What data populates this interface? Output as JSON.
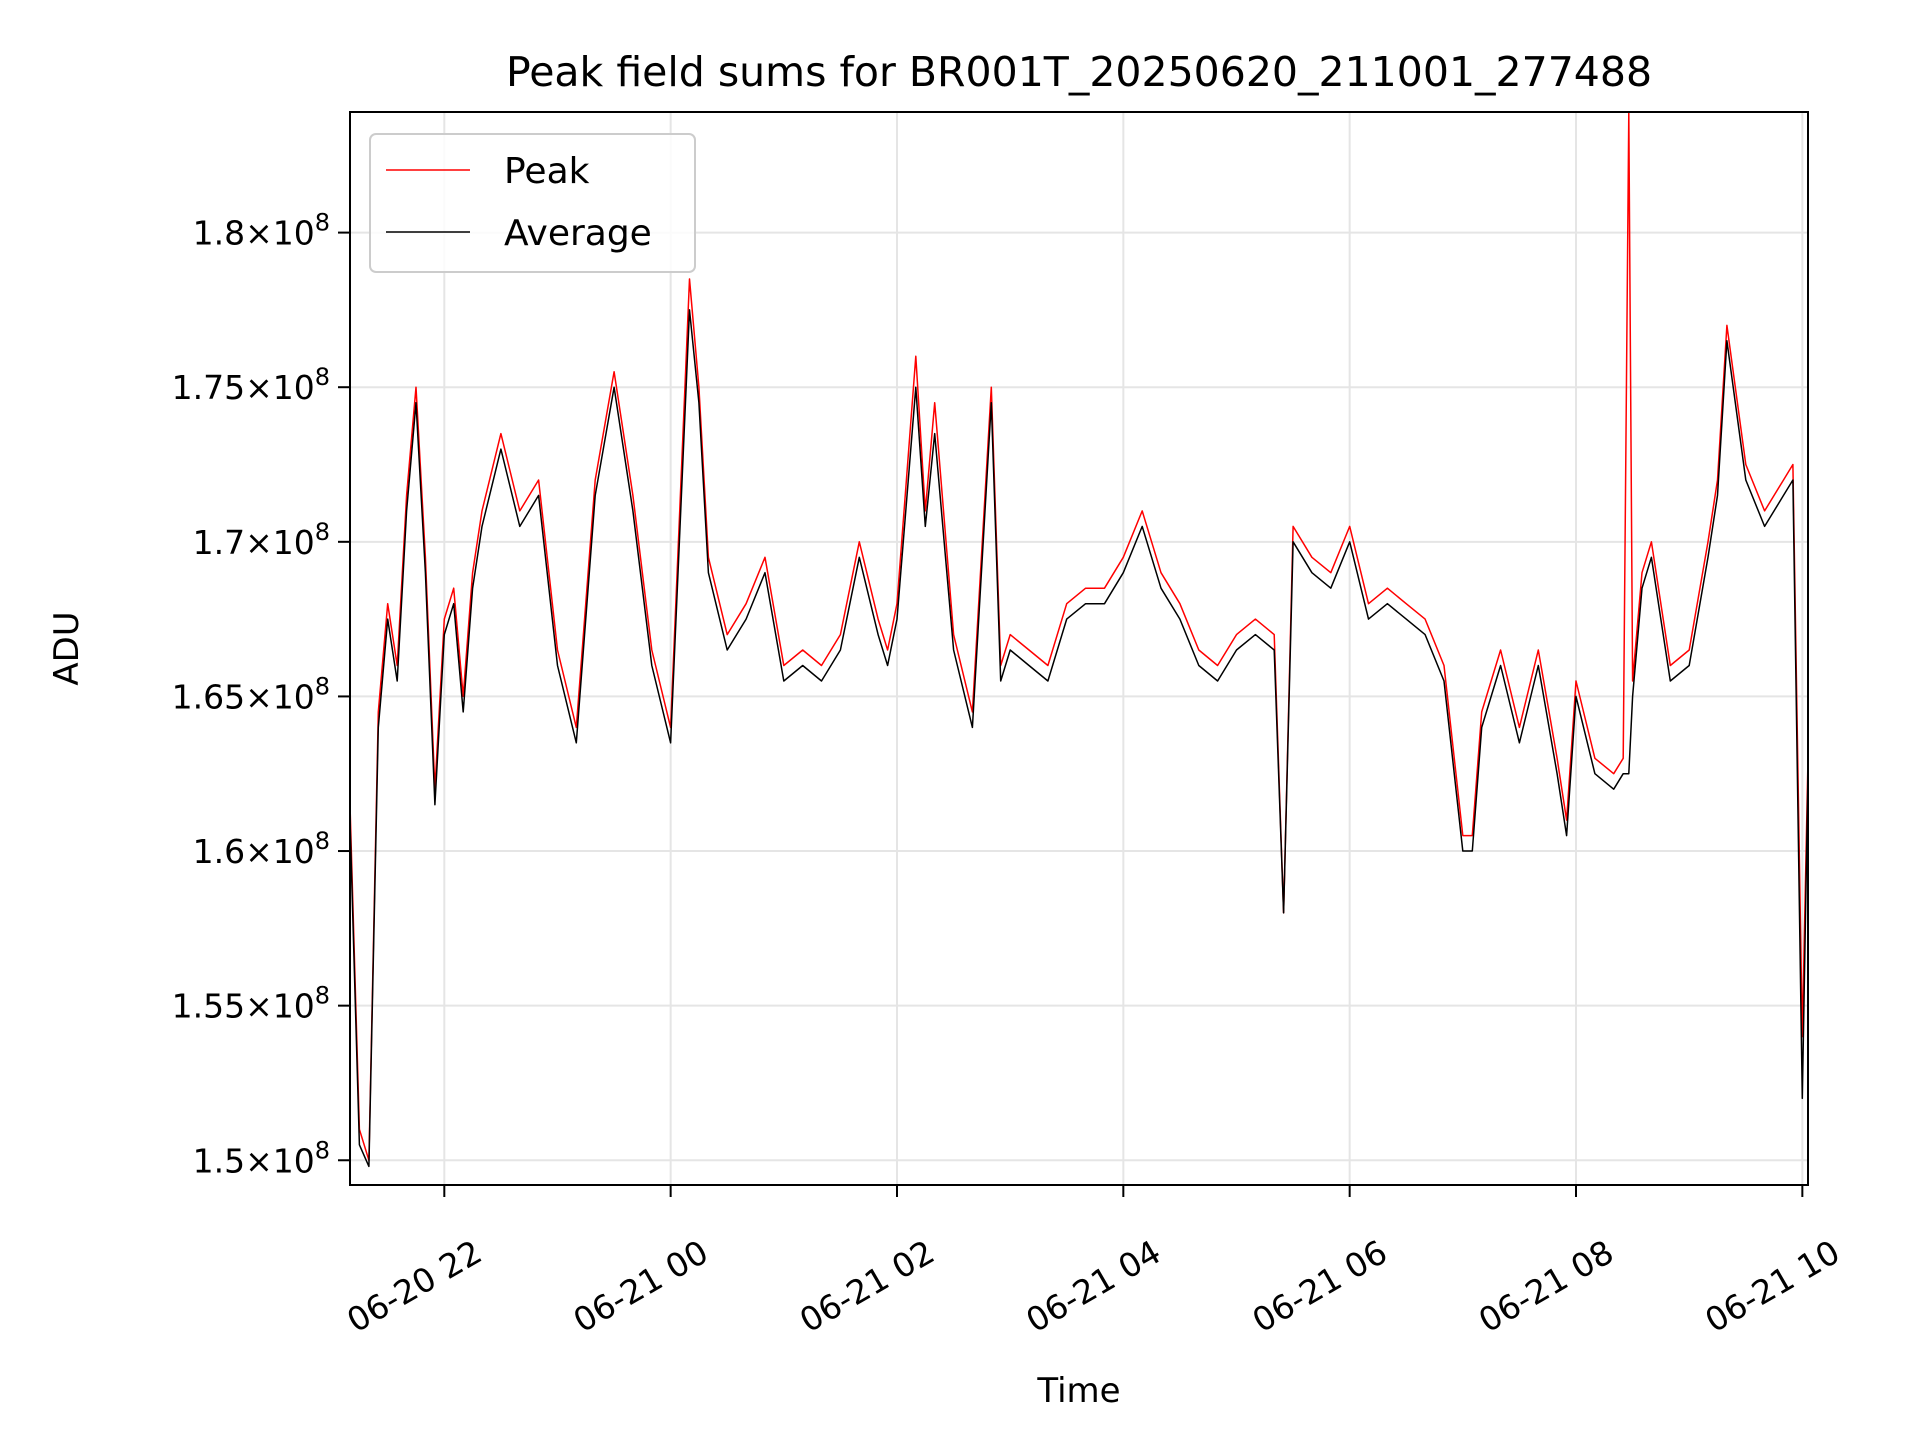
{
  "chart_data": {
    "type": "line",
    "title": "Peak field sums for BR001T_20250620_211001_277488",
    "xlabel": "Time",
    "ylabel": "ADU",
    "x_format": "MM-DD HH",
    "xlim": [
      "2025-06-20 21:10",
      "2025-06-21 10:03"
    ],
    "ylim": [
      149200000,
      183900000
    ],
    "grid": true,
    "legend_position": "top-left",
    "x_ticks": [
      "06-20 22",
      "06-21 00",
      "06-21 02",
      "06-21 04",
      "06-21 06",
      "06-21 08",
      "06-21 10"
    ],
    "x_tick_values": [
      "2025-06-20 22:00",
      "2025-06-21 00:00",
      "2025-06-21 02:00",
      "2025-06-21 04:00",
      "2025-06-21 06:00",
      "2025-06-21 08:00",
      "2025-06-21 10:00"
    ],
    "y_ticks": [
      {
        "value": 150000000,
        "mantissa": "1.5"
      },
      {
        "value": 155000000,
        "mantissa": "1.55"
      },
      {
        "value": 160000000,
        "mantissa": "1.6"
      },
      {
        "value": 165000000,
        "mantissa": "1.65"
      },
      {
        "value": 170000000,
        "mantissa": "1.7"
      },
      {
        "value": 175000000,
        "mantissa": "1.75"
      },
      {
        "value": 180000000,
        "mantissa": "1.8"
      }
    ],
    "y_tick_times": "×10",
    "y_tick_exponent": "8",
    "series": [
      {
        "name": "Peak",
        "color": "#ff0000",
        "x": [
          "2025-06-20 21:10",
          "2025-06-20 21:15",
          "2025-06-20 21:20",
          "2025-06-20 21:25",
          "2025-06-20 21:30",
          "2025-06-20 21:35",
          "2025-06-20 21:40",
          "2025-06-20 21:45",
          "2025-06-20 21:50",
          "2025-06-20 21:55",
          "2025-06-20 22:00",
          "2025-06-20 22:05",
          "2025-06-20 22:10",
          "2025-06-20 22:15",
          "2025-06-20 22:20",
          "2025-06-20 22:30",
          "2025-06-20 22:40",
          "2025-06-20 22:50",
          "2025-06-20 23:00",
          "2025-06-20 23:10",
          "2025-06-20 23:20",
          "2025-06-20 23:30",
          "2025-06-20 23:40",
          "2025-06-20 23:50",
          "2025-06-21 00:00",
          "2025-06-21 00:10",
          "2025-06-21 00:15",
          "2025-06-21 00:20",
          "2025-06-21 00:30",
          "2025-06-21 00:40",
          "2025-06-21 00:50",
          "2025-06-21 01:00",
          "2025-06-21 01:10",
          "2025-06-21 01:20",
          "2025-06-21 01:30",
          "2025-06-21 01:40",
          "2025-06-21 01:50",
          "2025-06-21 01:55",
          "2025-06-21 02:00",
          "2025-06-21 02:10",
          "2025-06-21 02:15",
          "2025-06-21 02:20",
          "2025-06-21 02:30",
          "2025-06-21 02:40",
          "2025-06-21 02:50",
          "2025-06-21 02:55",
          "2025-06-21 03:00",
          "2025-06-21 03:10",
          "2025-06-21 03:20",
          "2025-06-21 03:30",
          "2025-06-21 03:40",
          "2025-06-21 03:50",
          "2025-06-21 04:00",
          "2025-06-21 04:10",
          "2025-06-21 04:20",
          "2025-06-21 04:30",
          "2025-06-21 04:40",
          "2025-06-21 04:50",
          "2025-06-21 05:00",
          "2025-06-21 05:10",
          "2025-06-21 05:20",
          "2025-06-21 05:25",
          "2025-06-21 05:30",
          "2025-06-21 05:40",
          "2025-06-21 05:50",
          "2025-06-21 06:00",
          "2025-06-21 06:10",
          "2025-06-21 06:20",
          "2025-06-21 06:30",
          "2025-06-21 06:40",
          "2025-06-21 06:50",
          "2025-06-21 07:00",
          "2025-06-21 07:05",
          "2025-06-21 07:10",
          "2025-06-21 07:20",
          "2025-06-21 07:30",
          "2025-06-21 07:40",
          "2025-06-21 07:50",
          "2025-06-21 07:55",
          "2025-06-21 08:00",
          "2025-06-21 08:10",
          "2025-06-21 08:20",
          "2025-06-21 08:25",
          "2025-06-21 08:28",
          "2025-06-21 08:30",
          "2025-06-21 08:35",
          "2025-06-21 08:40",
          "2025-06-21 08:50",
          "2025-06-21 09:00",
          "2025-06-21 09:10",
          "2025-06-21 09:15",
          "2025-06-21 09:20",
          "2025-06-21 09:30",
          "2025-06-21 09:40",
          "2025-06-21 09:50",
          "2025-06-21 09:55",
          "2025-06-21 10:00",
          "2025-06-21 10:03"
        ],
        "values": [
          161500000,
          151000000,
          150000000,
          164500000,
          168000000,
          166000000,
          171500000,
          175000000,
          169500000,
          162000000,
          167500000,
          168500000,
          165000000,
          169000000,
          171000000,
          173500000,
          171000000,
          172000000,
          166500000,
          164000000,
          172000000,
          175500000,
          171500000,
          166500000,
          164000000,
          178500000,
          175000000,
          169500000,
          167000000,
          168000000,
          169500000,
          166000000,
          166500000,
          166000000,
          167000000,
          170000000,
          167500000,
          166500000,
          168000000,
          176000000,
          171000000,
          174500000,
          167000000,
          164500000,
          175000000,
          166000000,
          167000000,
          166500000,
          166000000,
          168000000,
          168500000,
          168500000,
          169500000,
          171000000,
          169000000,
          168000000,
          166500000,
          166000000,
          167000000,
          167500000,
          167000000,
          158000000,
          170500000,
          169500000,
          169000000,
          170500000,
          168000000,
          168500000,
          168000000,
          167500000,
          166000000,
          160500000,
          160500000,
          164500000,
          166500000,
          164000000,
          166500000,
          163000000,
          161000000,
          165500000,
          163000000,
          162500000,
          163000000,
          183900000,
          165500000,
          169000000,
          170000000,
          166000000,
          166500000,
          170000000,
          172000000,
          177000000,
          172500000,
          171000000,
          172000000,
          172500000,
          154000000,
          163000000
        ]
      },
      {
        "name": "Average",
        "color": "#000000",
        "x": [
          "2025-06-20 21:10",
          "2025-06-20 21:15",
          "2025-06-20 21:20",
          "2025-06-20 21:25",
          "2025-06-20 21:30",
          "2025-06-20 21:35",
          "2025-06-20 21:40",
          "2025-06-20 21:45",
          "2025-06-20 21:50",
          "2025-06-20 21:55",
          "2025-06-20 22:00",
          "2025-06-20 22:05",
          "2025-06-20 22:10",
          "2025-06-20 22:15",
          "2025-06-20 22:20",
          "2025-06-20 22:30",
          "2025-06-20 22:40",
          "2025-06-20 22:50",
          "2025-06-20 23:00",
          "2025-06-20 23:10",
          "2025-06-20 23:20",
          "2025-06-20 23:30",
          "2025-06-20 23:40",
          "2025-06-20 23:50",
          "2025-06-21 00:00",
          "2025-06-21 00:10",
          "2025-06-21 00:15",
          "2025-06-21 00:20",
          "2025-06-21 00:30",
          "2025-06-21 00:40",
          "2025-06-21 00:50",
          "2025-06-21 01:00",
          "2025-06-21 01:10",
          "2025-06-21 01:20",
          "2025-06-21 01:30",
          "2025-06-21 01:40",
          "2025-06-21 01:50",
          "2025-06-21 01:55",
          "2025-06-21 02:00",
          "2025-06-21 02:10",
          "2025-06-21 02:15",
          "2025-06-21 02:20",
          "2025-06-21 02:30",
          "2025-06-21 02:40",
          "2025-06-21 02:50",
          "2025-06-21 02:55",
          "2025-06-21 03:00",
          "2025-06-21 03:10",
          "2025-06-21 03:20",
          "2025-06-21 03:30",
          "2025-06-21 03:40",
          "2025-06-21 03:50",
          "2025-06-21 04:00",
          "2025-06-21 04:10",
          "2025-06-21 04:20",
          "2025-06-21 04:30",
          "2025-06-21 04:40",
          "2025-06-21 04:50",
          "2025-06-21 05:00",
          "2025-06-21 05:10",
          "2025-06-21 05:20",
          "2025-06-21 05:25",
          "2025-06-21 05:30",
          "2025-06-21 05:40",
          "2025-06-21 05:50",
          "2025-06-21 06:00",
          "2025-06-21 06:10",
          "2025-06-21 06:20",
          "2025-06-21 06:30",
          "2025-06-21 06:40",
          "2025-06-21 06:50",
          "2025-06-21 07:00",
          "2025-06-21 07:05",
          "2025-06-21 07:10",
          "2025-06-21 07:20",
          "2025-06-21 07:30",
          "2025-06-21 07:40",
          "2025-06-21 07:50",
          "2025-06-21 07:55",
          "2025-06-21 08:00",
          "2025-06-21 08:10",
          "2025-06-21 08:20",
          "2025-06-21 08:25",
          "2025-06-21 08:28",
          "2025-06-21 08:30",
          "2025-06-21 08:35",
          "2025-06-21 08:40",
          "2025-06-21 08:50",
          "2025-06-21 09:00",
          "2025-06-21 09:10",
          "2025-06-21 09:15",
          "2025-06-21 09:20",
          "2025-06-21 09:30",
          "2025-06-21 09:40",
          "2025-06-21 09:50",
          "2025-06-21 09:55",
          "2025-06-21 10:00",
          "2025-06-21 10:03"
        ],
        "values": [
          161000000,
          150500000,
          149800000,
          164000000,
          167500000,
          165500000,
          171000000,
          174500000,
          169000000,
          161500000,
          167000000,
          168000000,
          164500000,
          168500000,
          170500000,
          173000000,
          170500000,
          171500000,
          166000000,
          163500000,
          171500000,
          175000000,
          171000000,
          166000000,
          163500000,
          177500000,
          174500000,
          169000000,
          166500000,
          167500000,
          169000000,
          165500000,
          166000000,
          165500000,
          166500000,
          169500000,
          167000000,
          166000000,
          167500000,
          175000000,
          170500000,
          173500000,
          166500000,
          164000000,
          174500000,
          165500000,
          166500000,
          166000000,
          165500000,
          167500000,
          168000000,
          168000000,
          169000000,
          170500000,
          168500000,
          167500000,
          166000000,
          165500000,
          166500000,
          167000000,
          166500000,
          158000000,
          170000000,
          169000000,
          168500000,
          170000000,
          167500000,
          168000000,
          167500000,
          167000000,
          165500000,
          160000000,
          160000000,
          164000000,
          166000000,
          163500000,
          166000000,
          162500000,
          160500000,
          165000000,
          162500000,
          162000000,
          162500000,
          162500000,
          165000000,
          168500000,
          169500000,
          165500000,
          166000000,
          169500000,
          171500000,
          176500000,
          172000000,
          170500000,
          171500000,
          172000000,
          152000000,
          162500000
        ]
      }
    ]
  }
}
